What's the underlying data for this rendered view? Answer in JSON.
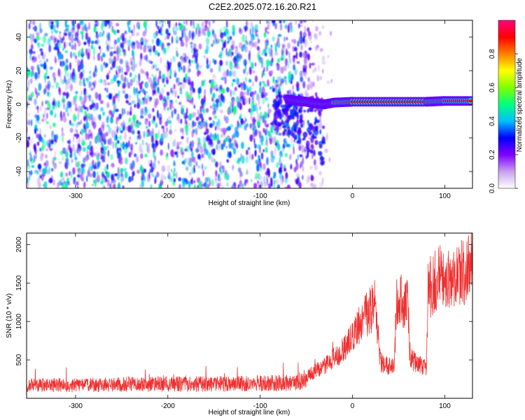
{
  "figure_title": "C2E2.2025.072.16.20.R21",
  "chart_data": [
    {
      "type": "heatmap",
      "title": "",
      "xlabel": "Height of straight line (km)",
      "ylabel": "Frequency (Hz)",
      "xlim": [
        -353,
        130
      ],
      "ylim": [
        -50,
        50
      ],
      "xticks": [
        -300,
        -200,
        -100,
        0,
        100
      ],
      "yticks": [
        -40,
        -20,
        0,
        20,
        40
      ],
      "grid": false,
      "colorbar": {
        "label": "Normalized spectral amplitude",
        "range": [
          0,
          1
        ],
        "ticks": [
          0.0,
          0.2,
          0.4,
          0.6,
          0.8
        ],
        "tick_labels": [
          "0.0",
          "0.2",
          "0.4",
          "0.6",
          "0.8"
        ],
        "colormap": [
          "#ffffff",
          "#c8a0f0",
          "#8000ff",
          "#0000ff",
          "#00c0ff",
          "#00ff80",
          "#80ff00",
          "#ffff00",
          "#ff8000",
          "#ff0000",
          "#ff0080"
        ]
      },
      "features": {
        "noise_region_x": [
          -353,
          -30
        ],
        "carrier_track": [
          {
            "x": -70,
            "freq": 3,
            "amp": 0.35
          },
          {
            "x": -60,
            "freq": 2,
            "amp": 0.45
          },
          {
            "x": -50,
            "freq": 1.5,
            "amp": 0.5
          },
          {
            "x": -40,
            "freq": 0.5,
            "amp": 0.55
          },
          {
            "x": -30,
            "freq": 0,
            "amp": 0.75
          },
          {
            "x": -20,
            "freq": 1,
            "amp": 0.85
          },
          {
            "x": 0,
            "freq": 1.5,
            "amp": 0.9
          },
          {
            "x": 40,
            "freq": 1.5,
            "amp": 0.92
          },
          {
            "x": 80,
            "freq": 1.5,
            "amp": 0.9
          },
          {
            "x": 100,
            "freq": 2,
            "amp": 0.95
          },
          {
            "x": 130,
            "freq": 2,
            "amp": 0.9
          }
        ]
      }
    },
    {
      "type": "line",
      "title": "",
      "xlabel": "Height of straight line (km)",
      "ylabel": "SNR (10 * v/v)",
      "xlim": [
        -353,
        130
      ],
      "ylim": [
        0,
        2150
      ],
      "xticks": [
        -300,
        -200,
        -100,
        0,
        100
      ],
      "yticks": [
        500,
        1000,
        1500,
        2000
      ],
      "grid": false,
      "series": [
        {
          "color": "#f03030",
          "x": [
            -353,
            -300,
            -250,
            -200,
            -150,
            -100,
            -60,
            -50,
            -40,
            -30,
            -20,
            -10,
            0,
            10,
            20,
            25,
            30,
            40,
            45,
            48,
            50,
            55,
            60,
            62,
            65,
            70,
            75,
            80,
            82,
            85,
            90,
            95,
            100,
            110,
            120,
            130
          ],
          "y": [
            170,
            170,
            180,
            185,
            185,
            195,
            200,
            280,
            360,
            420,
            520,
            620,
            800,
            1000,
            1150,
            1250,
            470,
            420,
            400,
            1300,
            1300,
            1250,
            1250,
            600,
            500,
            450,
            420,
            400,
            1450,
            1450,
            1550,
            1600,
            1550,
            1600,
            1650,
            1750
          ]
        }
      ]
    }
  ]
}
